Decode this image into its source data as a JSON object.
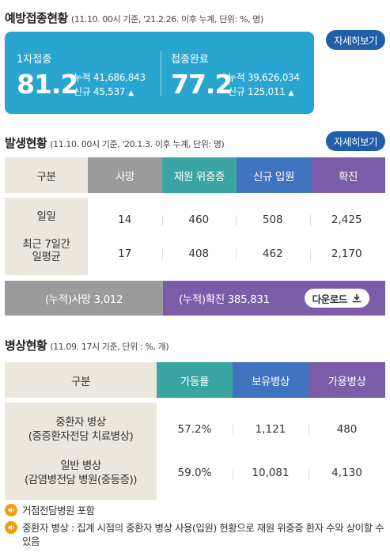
{
  "vaccination": {
    "title": "예방접종현황",
    "note": "(11.10. 00시 기준, '21.2.26. 이후 누계, 단위: %, 명)",
    "detail_button": "자세히보기",
    "first_dose": {
      "label": "1차접종",
      "rate": "81.2",
      "cumulative": "누적 41,686,843",
      "new": "신규 45,537"
    },
    "complete": {
      "label": "접종완료",
      "rate": "77.2",
      "cumulative": "누적 39,626,034",
      "new": "신규 125,011"
    },
    "accent": "#2aa5cf"
  },
  "occurrence": {
    "title": "발생현황",
    "note": "(11.10. 00시 기준, '20.1.3. 이후 누계, 단위: 명)",
    "detail_button": "자세히보기",
    "headers": [
      "구분",
      "사망",
      "재원 위중증",
      "신규 입원",
      "확진"
    ],
    "rows": [
      {
        "label": "일일",
        "values": [
          "14",
          "460",
          "508",
          "2,425"
        ]
      },
      {
        "label": "최근 7일간 일평균",
        "values": [
          "17",
          "408",
          "462",
          "2,170"
        ]
      }
    ],
    "cumulative_death": "(누적)사망   3,012",
    "cumulative_confirmed": "(누적)확진   385,831",
    "download_button": "다운로드",
    "colors": {
      "death": "#9b9b9b",
      "icu": "#3aa5a2",
      "new": "#3f74c1",
      "confirmed": "#7a5ca8"
    }
  },
  "beds": {
    "title": "병상현황",
    "note": "(11.09. 17시 기준, 단위 : %, 개)",
    "headers": [
      "구분",
      "가동률",
      "보유병상",
      "가용병상"
    ],
    "rows": [
      {
        "label1": "중환자 병상",
        "label2": "(중증환자전담 치료병상)",
        "values": [
          "57.2%",
          "1,121",
          "480"
        ]
      },
      {
        "label1": "일반 병상",
        "label2": "(감염병전담 병원(중등증))",
        "values": [
          "59.0%",
          "10,081",
          "4,130"
        ]
      }
    ]
  },
  "notes": [
    "거점전담병원 포함",
    "중환자 병상 : 집계 시점의 중환자 병상 사용(입원) 현황으로 재원 위중증 환자 수와 상이할 수 있음"
  ]
}
